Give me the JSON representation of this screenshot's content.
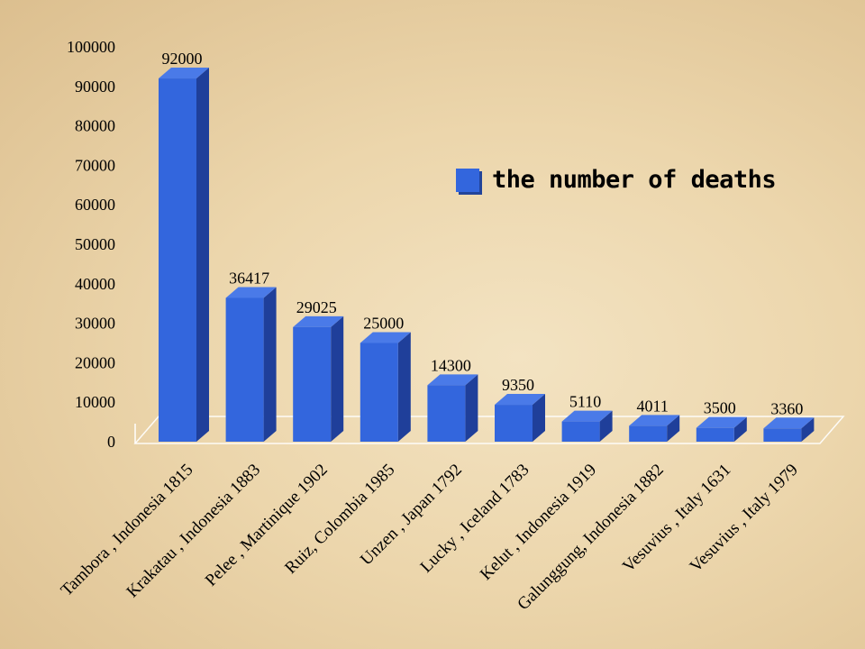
{
  "chart_data": {
    "type": "bar",
    "categories": [
      "Tambora , Indonesia 1815",
      "Krakatau , Indonesia 1883",
      "Pelee , Martinique 1902",
      "Ruiz, Colombia 1985",
      "Unzen , Japan 1792",
      "Lucky , Iceland 1783",
      "Kelut , Indonesia 1919",
      "Galunggung, Indonesia 1882",
      "Vesuvius , Italy 1631",
      "Vesuvius , Italy 1979"
    ],
    "series": [
      {
        "name": "the number of deaths",
        "values": [
          92000,
          36417,
          29025,
          25000,
          14300,
          9350,
          5110,
          4011,
          3500,
          3360
        ],
        "labels": [
          "92000",
          "36417",
          "29025",
          "25000",
          "14300",
          "9350",
          "5110",
          "4011",
          "3500",
          "3360"
        ]
      }
    ],
    "yticks": [
      0,
      10000,
      20000,
      30000,
      40000,
      50000,
      60000,
      70000,
      80000,
      90000,
      100000
    ],
    "ylim": [
      0,
      100000
    ],
    "legend_position": "right",
    "style": "3d-bar",
    "colors": {
      "bar_front": "#3366dd",
      "bar_side": "#1f3f9a",
      "bar_top": "#4a7ae8"
    }
  }
}
